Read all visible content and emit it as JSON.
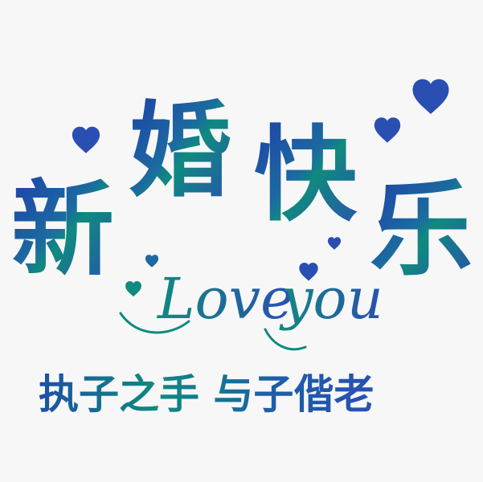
{
  "title": {
    "chars": [
      "新",
      "婚",
      "快",
      "乐"
    ]
  },
  "script": {
    "text_love": "Love",
    "text_you": "you"
  },
  "subtitle": {
    "text": "执子之手 与子偕老"
  },
  "colors": {
    "primary_blue": "#2A4FB3",
    "accent_teal": "#0F8A7E",
    "dark_teal": "#0A5A55",
    "heart_blue": "#2A4FB3",
    "background": "#F7F7F7"
  },
  "icons": [
    "heart-icon"
  ]
}
